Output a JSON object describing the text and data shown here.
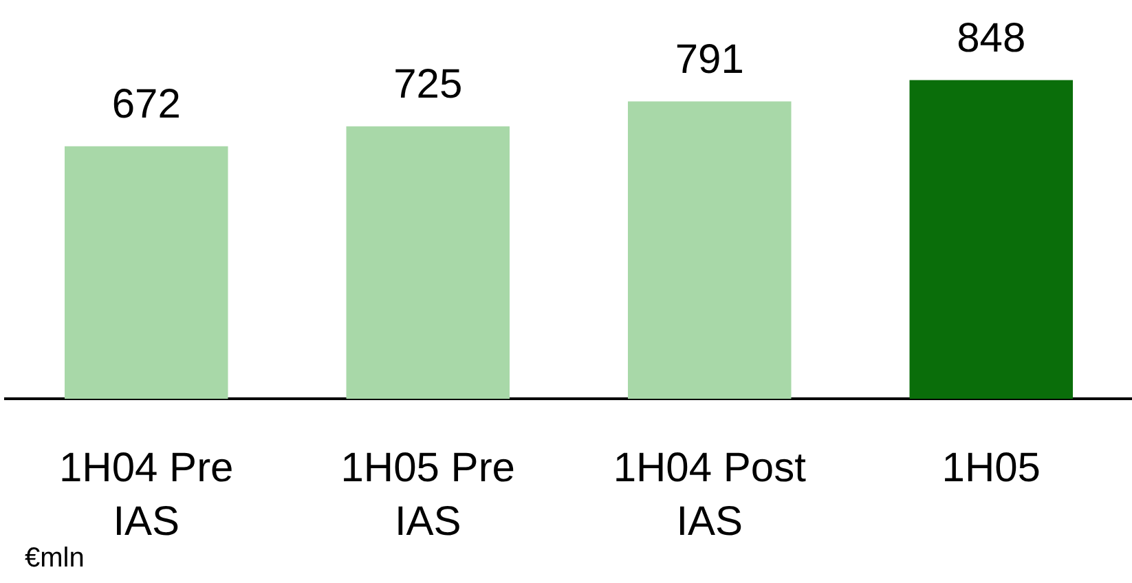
{
  "chart_data": {
    "type": "bar",
    "categories": [
      "1H04 Pre IAS",
      "1H05 Pre IAS",
      "1H04 Post IAS",
      "1H05"
    ],
    "values": [
      672,
      725,
      791,
      848
    ],
    "colors": [
      "#a8d8a8",
      "#a8d8a8",
      "#a8d8a8",
      "#0a6e0a"
    ],
    "data_labels": true,
    "annotations": [
      "€mln"
    ]
  }
}
